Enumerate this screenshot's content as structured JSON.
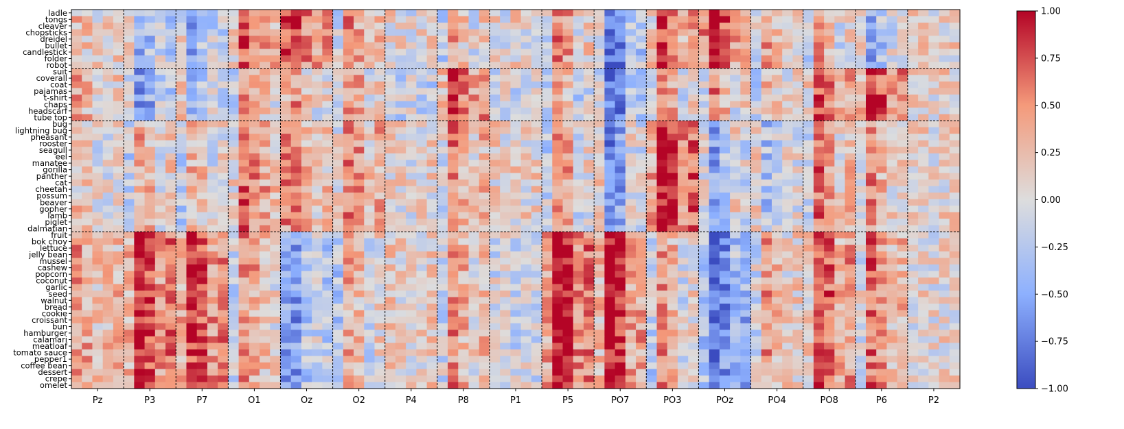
{
  "chart_data": {
    "type": "heatmap",
    "title": "",
    "xlabel": "",
    "ylabel": "",
    "colormap": "coolwarm",
    "colorbar": {
      "min": -1.0,
      "max": 1.0,
      "ticks": [
        1.0,
        0.75,
        0.5,
        0.25,
        0.0,
        -0.25,
        -0.5,
        -0.75,
        -1.0
      ],
      "tick_labels": [
        "1.00",
        "0.75",
        "0.50",
        "0.25",
        "0.00",
        "−0.25",
        "−0.50",
        "−0.75",
        "−1.00"
      ]
    },
    "x_channels": [
      "Pz",
      "P3",
      "P7",
      "O1",
      "Oz",
      "O2",
      "P4",
      "P8",
      "P1",
      "P5",
      "PO7",
      "PO3",
      "POz",
      "PO4",
      "PO8",
      "P6",
      "P2"
    ],
    "y_labels": [
      "ladle",
      "tongs",
      "cleaver",
      "chopsticks",
      "dreidel",
      "bullet",
      "candlestick",
      "folder",
      "robot",
      "suit",
      "coverall",
      "coat",
      "pajamas",
      "t-shirt",
      "chaps",
      "headscarf",
      "tube top",
      "bug",
      "lightning bug",
      "pheasant",
      "rooster",
      "seagull",
      "eel",
      "manatee",
      "gorilla",
      "panther",
      "cat",
      "cheetah",
      "possum",
      "beaver",
      "gopher",
      "lamb",
      "piglet",
      "dalmatian",
      "fruit",
      "bok choy",
      "lettuce",
      "jelly bean",
      "mussel",
      "cashew",
      "popcorn",
      "coconut",
      "garlic",
      "seed",
      "walnut",
      "bread",
      "cookie",
      "croissant",
      "bun",
      "hamburger",
      "calamari",
      "meatloaf",
      "tomato sauce",
      "pepper1",
      "coffee bean",
      "dessert",
      "crepe",
      "omelet"
    ],
    "row_groups": [
      {
        "first": "ladle",
        "last": "robot"
      },
      {
        "first": "suit",
        "last": "tube top"
      },
      {
        "first": "bug",
        "last": "dalmatian"
      },
      {
        "first": "fruit",
        "last": "omelet"
      }
    ],
    "group_sizes": [
      9,
      8,
      17,
      24
    ],
    "grid": false,
    "channel_group_profiles": [
      [
        0.15,
        0.25,
        0.05,
        0.35
      ],
      [
        -0.2,
        -0.35,
        0.1,
        0.75
      ],
      [
        -0.25,
        -0.1,
        0.05,
        0.7
      ],
      [
        0.5,
        0.2,
        0.45,
        0.2
      ],
      [
        0.9,
        0.35,
        0.5,
        -0.5
      ],
      [
        0.3,
        0.2,
        0.45,
        0.1
      ],
      [
        0.05,
        -0.15,
        0.05,
        0.1
      ],
      [
        0.1,
        0.65,
        0.3,
        0.25
      ],
      [
        0.05,
        -0.05,
        0.1,
        -0.05
      ],
      [
        0.25,
        0.0,
        0.15,
        0.85
      ],
      [
        -0.55,
        -0.5,
        -0.3,
        0.75
      ],
      [
        0.55,
        0.1,
        0.85,
        0.1
      ],
      [
        0.75,
        0.1,
        -0.1,
        -0.6
      ],
      [
        0.2,
        0.05,
        -0.05,
        0.2
      ],
      [
        0.1,
        0.55,
        0.3,
        0.6
      ],
      [
        -0.15,
        0.7,
        0.2,
        0.35
      ],
      [
        0.1,
        0.1,
        0.1,
        0.05
      ]
    ],
    "channel_stripe_profiles": [
      [
        0.3,
        0.15,
        -0.1,
        -0.05,
        0.0
      ],
      [
        -0.5,
        0.6,
        0.4,
        -0.2,
        0.1
      ],
      [
        -0.4,
        0.5,
        0.3,
        -0.1,
        0.0
      ],
      [
        -0.5,
        0.6,
        0.4,
        0.1,
        -0.2
      ],
      [
        0.2,
        0.4,
        -0.2,
        -0.5,
        -0.3
      ],
      [
        -0.6,
        0.5,
        0.3,
        -0.3,
        0.0
      ],
      [
        0.1,
        0.05,
        -0.1,
        0.0,
        0.1
      ],
      [
        -0.5,
        0.6,
        0.2,
        -0.2,
        0.1
      ],
      [
        0.05,
        -0.1,
        0.1,
        0.0,
        0.05
      ],
      [
        -0.5,
        0.7,
        0.5,
        -0.3,
        -0.1
      ],
      [
        -0.6,
        0.8,
        0.6,
        -0.4,
        -0.3
      ],
      [
        -0.5,
        0.7,
        0.4,
        -0.2,
        0.0
      ],
      [
        -0.2,
        0.8,
        0.3,
        -0.3,
        0.0
      ],
      [
        -0.4,
        0.5,
        0.2,
        -0.1,
        0.0
      ],
      [
        -0.5,
        0.7,
        0.4,
        -0.2,
        0.0
      ],
      [
        -0.5,
        0.7,
        0.3,
        -0.1,
        0.0
      ],
      [
        0.0,
        0.1,
        0.0,
        0.05,
        0.1
      ]
    ]
  }
}
